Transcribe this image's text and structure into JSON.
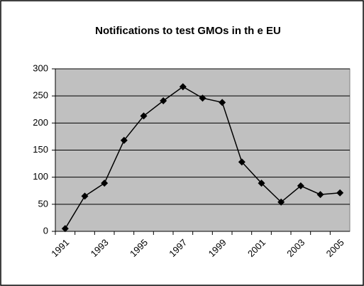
{
  "chart_data": {
    "type": "line",
    "title": "Notifications to test GMOs in th e EU",
    "categories": [
      "1991",
      null,
      "1993",
      null,
      "1995",
      null,
      "1997",
      null,
      "1999",
      null,
      "2001",
      null,
      "2003",
      null,
      "2005"
    ],
    "values": [
      5,
      65,
      89,
      168,
      213,
      241,
      267,
      246,
      238,
      128,
      89,
      54,
      84,
      68,
      71
    ],
    "color": "#000000",
    "ylim": [
      0,
      300
    ],
    "yticks": [
      0,
      50,
      100,
      150,
      200,
      250,
      300
    ],
    "grid": true
  }
}
